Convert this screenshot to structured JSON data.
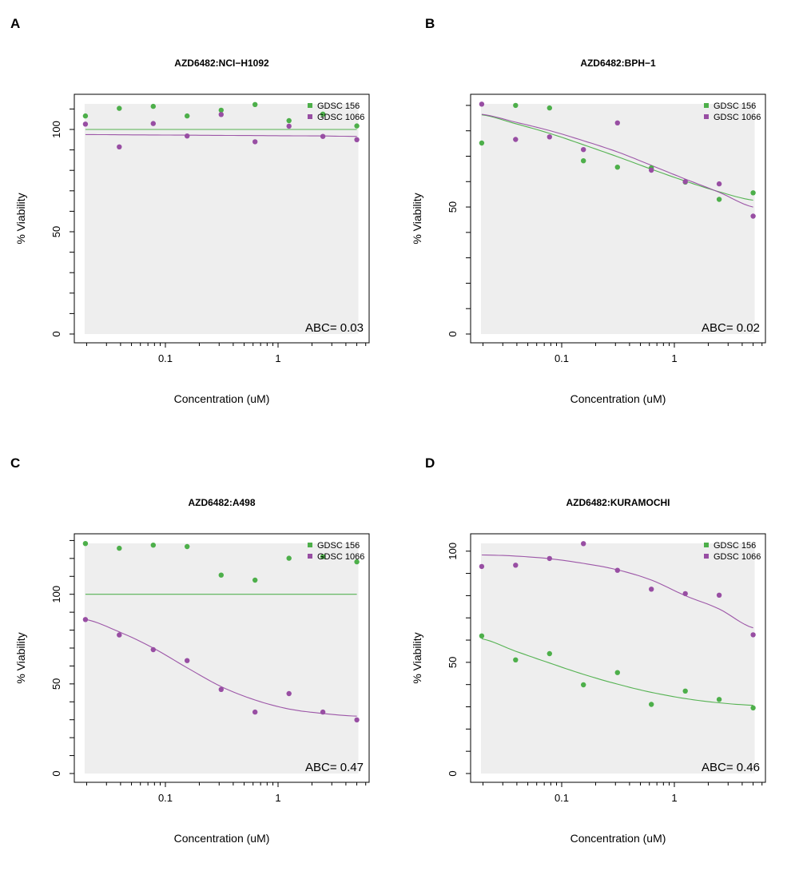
{
  "figure": {
    "panels": [
      {
        "letter": "A"
      },
      {
        "letter": "B"
      },
      {
        "letter": "C"
      },
      {
        "letter": "D"
      }
    ]
  },
  "colors": {
    "GDSC 156": "#4DAF4A",
    "GDSC 1066": "#984EA3",
    "background": "#EEEEEE",
    "axis": "#000000"
  },
  "chart_data": [
    {
      "panel": "A",
      "type": "scatter",
      "title": "AZD6482:NCI−H1092",
      "xlabel": "Concentration (uM)",
      "ylabel": "% Viability",
      "xscale": "log",
      "xlim": [
        0.0195,
        5
      ],
      "x_tick_labels": [
        "0.1",
        "1"
      ],
      "x_major_ticks": [
        0.1,
        1
      ],
      "x_minor_ticks": [
        0.02,
        0.03,
        0.04,
        0.05,
        0.06,
        0.07,
        0.08,
        0.09,
        0.2,
        0.3,
        0.4,
        0.5,
        0.6,
        0.7,
        0.8,
        0.9,
        2,
        3,
        4,
        5,
        6
      ],
      "ylim": [
        0,
        112.5
      ],
      "y_ticks": [
        0,
        10,
        20,
        30,
        40,
        50,
        60,
        70,
        80,
        90,
        100,
        110
      ],
      "y_tick_labels": [
        "0",
        "50",
        "100"
      ],
      "y_labeled_ticks": [
        0,
        50,
        100
      ],
      "legend": {
        "position": "top-right",
        "entries": [
          "GDSC 156",
          "GDSC 1066"
        ]
      },
      "annotation": "ABC= 0.03",
      "x": [
        0.0195,
        0.039,
        0.078,
        0.156,
        0.3125,
        0.625,
        1.25,
        2.5,
        5
      ],
      "series": [
        {
          "name": "GDSC 156",
          "points": [
            106.6,
            110.3,
            111.3,
            106.6,
            109.4,
            112.2,
            104.3,
            107.5,
            101.7
          ],
          "curve": [
            100,
            100,
            100,
            100,
            100,
            100,
            100,
            100,
            100
          ]
        },
        {
          "name": "GDSC 1066",
          "points": [
            102.6,
            91.5,
            102.9,
            96.8,
            107.3,
            94.0,
            101.6,
            96.6,
            95.0
          ],
          "curve": [
            97.5,
            97.4,
            97.3,
            97.2,
            97.1,
            97.0,
            96.9,
            96.8,
            96.6
          ]
        }
      ]
    },
    {
      "panel": "B",
      "type": "scatter",
      "title": "AZD6482:BPH−1",
      "xlabel": "Concentration (uM)",
      "ylabel": "% Viability",
      "xscale": "log",
      "xlim": [
        0.0195,
        5
      ],
      "x_tick_labels": [
        "0.1",
        "1"
      ],
      "x_major_ticks": [
        0.1,
        1
      ],
      "x_minor_ticks": [
        0.02,
        0.03,
        0.04,
        0.05,
        0.06,
        0.07,
        0.08,
        0.09,
        0.2,
        0.3,
        0.4,
        0.5,
        0.6,
        0.7,
        0.8,
        0.9,
        2,
        3,
        4,
        5,
        6
      ],
      "ylim": [
        0,
        90.6
      ],
      "y_ticks": [
        0,
        10,
        20,
        30,
        40,
        50,
        60,
        70,
        80,
        90
      ],
      "y_tick_labels": [
        "0",
        "50"
      ],
      "y_labeled_ticks": [
        0,
        50
      ],
      "legend": {
        "position": "top-right",
        "entries": [
          "GDSC 156",
          "GDSC 1066"
        ]
      },
      "annotation": "ABC= 0.02",
      "x": [
        0.0195,
        0.039,
        0.078,
        0.156,
        0.3125,
        0.625,
        1.25,
        2.5,
        5
      ],
      "series": [
        {
          "name": "GDSC 156",
          "points": [
            75.2,
            90.0,
            89.0,
            68.2,
            65.7,
            65.4,
            59.8,
            53.0,
            55.6
          ],
          "curve": [
            86.3,
            82.8,
            79.0,
            74.5,
            69.8,
            64.9,
            60.2,
            56.0,
            52.7
          ]
        },
        {
          "name": "GDSC 1066",
          "points": [
            90.5,
            76.6,
            77.6,
            72.6,
            83.1,
            64.5,
            60.0,
            59.1,
            46.4
          ],
          "curve": [
            86.5,
            83.4,
            80.1,
            76.1,
            71.7,
            66.4,
            61.0,
            55.8,
            50.0
          ]
        }
      ]
    },
    {
      "panel": "C",
      "type": "scatter",
      "title": "AZD6482:A498",
      "xlabel": "Concentration (uM)",
      "ylabel": "% Viability",
      "xscale": "log",
      "xlim": [
        0.0195,
        5
      ],
      "x_tick_labels": [
        "0.1",
        "1"
      ],
      "x_major_ticks": [
        0.1,
        1
      ],
      "x_minor_ticks": [
        0.02,
        0.03,
        0.04,
        0.05,
        0.06,
        0.07,
        0.08,
        0.09,
        0.2,
        0.3,
        0.4,
        0.5,
        0.6,
        0.7,
        0.8,
        0.9,
        2,
        3,
        4,
        5,
        6
      ],
      "ylim": [
        0,
        128.4
      ],
      "y_ticks": [
        0,
        10,
        20,
        30,
        40,
        50,
        60,
        70,
        80,
        90,
        100,
        110,
        120,
        130
      ],
      "y_tick_labels": [
        "0",
        "50",
        "100"
      ],
      "y_labeled_ticks": [
        0,
        50,
        100
      ],
      "legend": {
        "position": "top-right",
        "entries": [
          "GDSC 156",
          "GDSC 1066"
        ]
      },
      "annotation": "ABC= 0.47",
      "x": [
        0.0195,
        0.039,
        0.078,
        0.156,
        0.3125,
        0.625,
        1.25,
        2.5,
        5
      ],
      "series": [
        {
          "name": "GDSC 156",
          "points": [
            128.3,
            125.7,
            127.4,
            126.6,
            110.7,
            107.9,
            120.1,
            121.0,
            118.1
          ],
          "curve": [
            100,
            100,
            100,
            100,
            100,
            100,
            100,
            100,
            100
          ]
        },
        {
          "name": "GDSC 1066",
          "points": [
            85.9,
            77.3,
            69.1,
            63.0,
            46.9,
            34.3,
            44.6,
            34.3,
            29.9
          ],
          "curve": [
            86.0,
            79.0,
            70.0,
            59.0,
            48.5,
            41.0,
            36.0,
            33.5,
            32.0
          ]
        }
      ]
    },
    {
      "panel": "D",
      "type": "scatter",
      "title": "AZD6482:KURAMOCHI",
      "xlabel": "Concentration (uM)",
      "ylabel": "% Viability",
      "xscale": "log",
      "xlim": [
        0.0195,
        5
      ],
      "x_tick_labels": [
        "0.1",
        "1"
      ],
      "x_major_ticks": [
        0.1,
        1
      ],
      "x_minor_ticks": [
        0.02,
        0.03,
        0.04,
        0.05,
        0.06,
        0.07,
        0.08,
        0.09,
        0.2,
        0.3,
        0.4,
        0.5,
        0.6,
        0.7,
        0.8,
        0.9,
        2,
        3,
        4,
        5,
        6
      ],
      "ylim": [
        0,
        103.5
      ],
      "y_ticks": [
        0,
        10,
        20,
        30,
        40,
        50,
        60,
        70,
        80,
        90,
        100
      ],
      "y_tick_labels": [
        "0",
        "50",
        "100"
      ],
      "y_labeled_ticks": [
        0,
        50,
        100
      ],
      "legend": {
        "position": "top-right",
        "entries": [
          "GDSC 156",
          "GDSC 1066"
        ]
      },
      "annotation": "ABC= 0.46",
      "x": [
        0.0195,
        0.039,
        0.078,
        0.156,
        0.3125,
        0.625,
        1.25,
        2.5,
        5
      ],
      "series": [
        {
          "name": "GDSC 156",
          "points": [
            61.9,
            51.1,
            53.9,
            39.9,
            45.4,
            31.1,
            37.1,
            33.3,
            29.5
          ],
          "curve": [
            60.6,
            55.0,
            49.7,
            44.6,
            40.2,
            36.5,
            33.7,
            31.8,
            30.7
          ]
        },
        {
          "name": "GDSC 1066",
          "points": [
            93.1,
            93.7,
            96.7,
            103.4,
            91.4,
            82.9,
            80.9,
            80.2,
            62.4
          ],
          "curve": [
            98.3,
            97.8,
            96.6,
            94.5,
            91.6,
            87.0,
            80.0,
            74.0,
            65.5
          ]
        }
      ]
    }
  ]
}
